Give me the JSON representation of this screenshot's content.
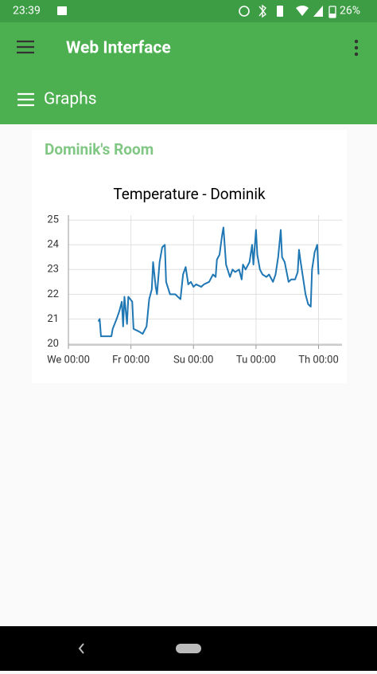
{
  "status_bar": {
    "time": "23:39",
    "battery": "26%"
  },
  "app_bar": {
    "title": "Web Interface"
  },
  "section": {
    "title": "Graphs"
  },
  "card": {
    "title": "Dominik's Room"
  },
  "chart_data": {
    "type": "line",
    "title": "Temperature - Dominik",
    "x": [
      23,
      24,
      25,
      27,
      30,
      33,
      34,
      37,
      39,
      41,
      42,
      43,
      45,
      46,
      49,
      50,
      54,
      57,
      60,
      62,
      64,
      65,
      67,
      68,
      70,
      72,
      74,
      75,
      78,
      82,
      86,
      88,
      90,
      92,
      94,
      96,
      98,
      102,
      104,
      108,
      111,
      113,
      114,
      116,
      118,
      119,
      121,
      124,
      126,
      128,
      131,
      133,
      134,
      136,
      139,
      141,
      142,
      144,
      145,
      147,
      149,
      152,
      154,
      157,
      159,
      161,
      163,
      164,
      166,
      169,
      171,
      174,
      176,
      177,
      178,
      180,
      182,
      184,
      186,
      187,
      189,
      191,
      192
    ],
    "series": [
      {
        "name": "Temperature",
        "color": "#1f77b4",
        "values": [
          20.9,
          21.0,
          20.3,
          20.3,
          20.3,
          20.3,
          20.6,
          21.0,
          21.3,
          21.7,
          20.7,
          21.9,
          20.8,
          21.9,
          21.7,
          20.6,
          20.5,
          20.4,
          20.7,
          21.8,
          22.2,
          23.3,
          22.3,
          22.0,
          23.3,
          23.9,
          24.0,
          22.5,
          22.0,
          22.0,
          21.8,
          22.8,
          23.1,
          22.4,
          22.5,
          22.3,
          22.4,
          22.3,
          22.4,
          22.5,
          22.8,
          22.7,
          23.4,
          23.6,
          24.4,
          24.7,
          23.2,
          22.7,
          23.0,
          22.9,
          23.0,
          22.6,
          23.2,
          23.0,
          23.3,
          24.0,
          23.2,
          24.6,
          23.6,
          23.0,
          22.8,
          22.7,
          22.8,
          22.5,
          22.8,
          23.5,
          24.6,
          23.5,
          23.3,
          22.5,
          22.6,
          22.6,
          22.9,
          23.8,
          23.4,
          22.7,
          22.0,
          21.6,
          21.5,
          23.0,
          23.7,
          24.0,
          22.8
        ]
      }
    ],
    "xlim": [
      0,
      210
    ],
    "xticks": [
      {
        "value": 0,
        "label": "We 00:00"
      },
      {
        "value": 48,
        "label": "Fr 00:00"
      },
      {
        "value": 96,
        "label": "Su 00:00"
      },
      {
        "value": 144,
        "label": "Tu 00:00"
      },
      {
        "value": 192,
        "label": "Th 00:00"
      }
    ],
    "ylim": [
      19.95,
      25.2
    ],
    "yticks": [
      20,
      21,
      22,
      23,
      24,
      25
    ],
    "grid": true
  }
}
